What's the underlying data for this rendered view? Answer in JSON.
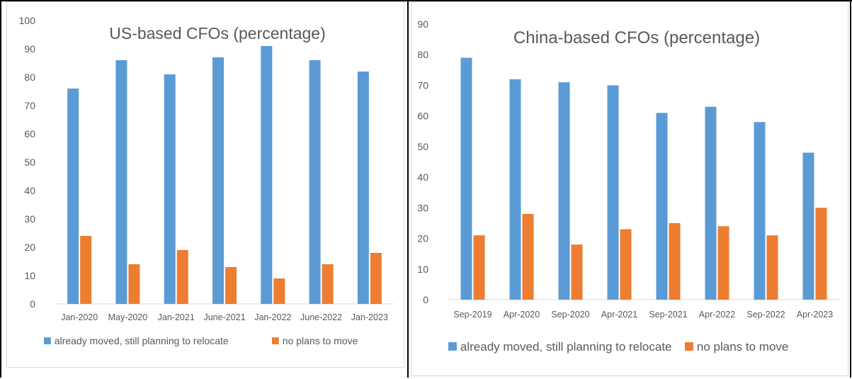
{
  "colors": {
    "series_a": "#5b9bd5",
    "series_b": "#ed7d31",
    "axis": "#d9d9d9",
    "text": "#595959"
  },
  "chart_data": [
    {
      "type": "bar",
      "title": "US-based CFOs (percentage)",
      "categories": [
        "Jan-2020",
        "May-2020",
        "Jan-2021",
        "June-2021",
        "Jan-2022",
        "June-2022",
        "Jan-2023"
      ],
      "series": [
        {
          "name": "already moved, still planning to relocate",
          "values": [
            76,
            86,
            81,
            87,
            91,
            86,
            82
          ]
        },
        {
          "name": "no plans to move",
          "values": [
            24,
            14,
            19,
            13,
            9,
            14,
            18
          ]
        }
      ],
      "ylim": [
        0,
        100
      ],
      "yticks": [
        0,
        10,
        20,
        30,
        40,
        50,
        60,
        70,
        80,
        90,
        100
      ],
      "grid": false,
      "legend": "bottom",
      "xlabel": "",
      "ylabel": ""
    },
    {
      "type": "bar",
      "title": "China-based CFOs (percentage)",
      "categories": [
        "Sep-2019",
        "Apr-2020",
        "Sep-2020",
        "Apr-2021",
        "Sep-2021",
        "Apr-2022",
        "Sep-2022",
        "Apr-2023"
      ],
      "series": [
        {
          "name": "already moved, still planning to relocate",
          "values": [
            79,
            72,
            71,
            70,
            61,
            63,
            58,
            48
          ]
        },
        {
          "name": "no plans to move",
          "values": [
            21,
            28,
            18,
            23,
            25,
            24,
            21,
            30
          ]
        }
      ],
      "ylim": [
        0,
        90
      ],
      "yticks": [
        0,
        10,
        20,
        30,
        40,
        50,
        60,
        70,
        80,
        90
      ],
      "grid": false,
      "legend": "bottom",
      "xlabel": "",
      "ylabel": ""
    }
  ]
}
